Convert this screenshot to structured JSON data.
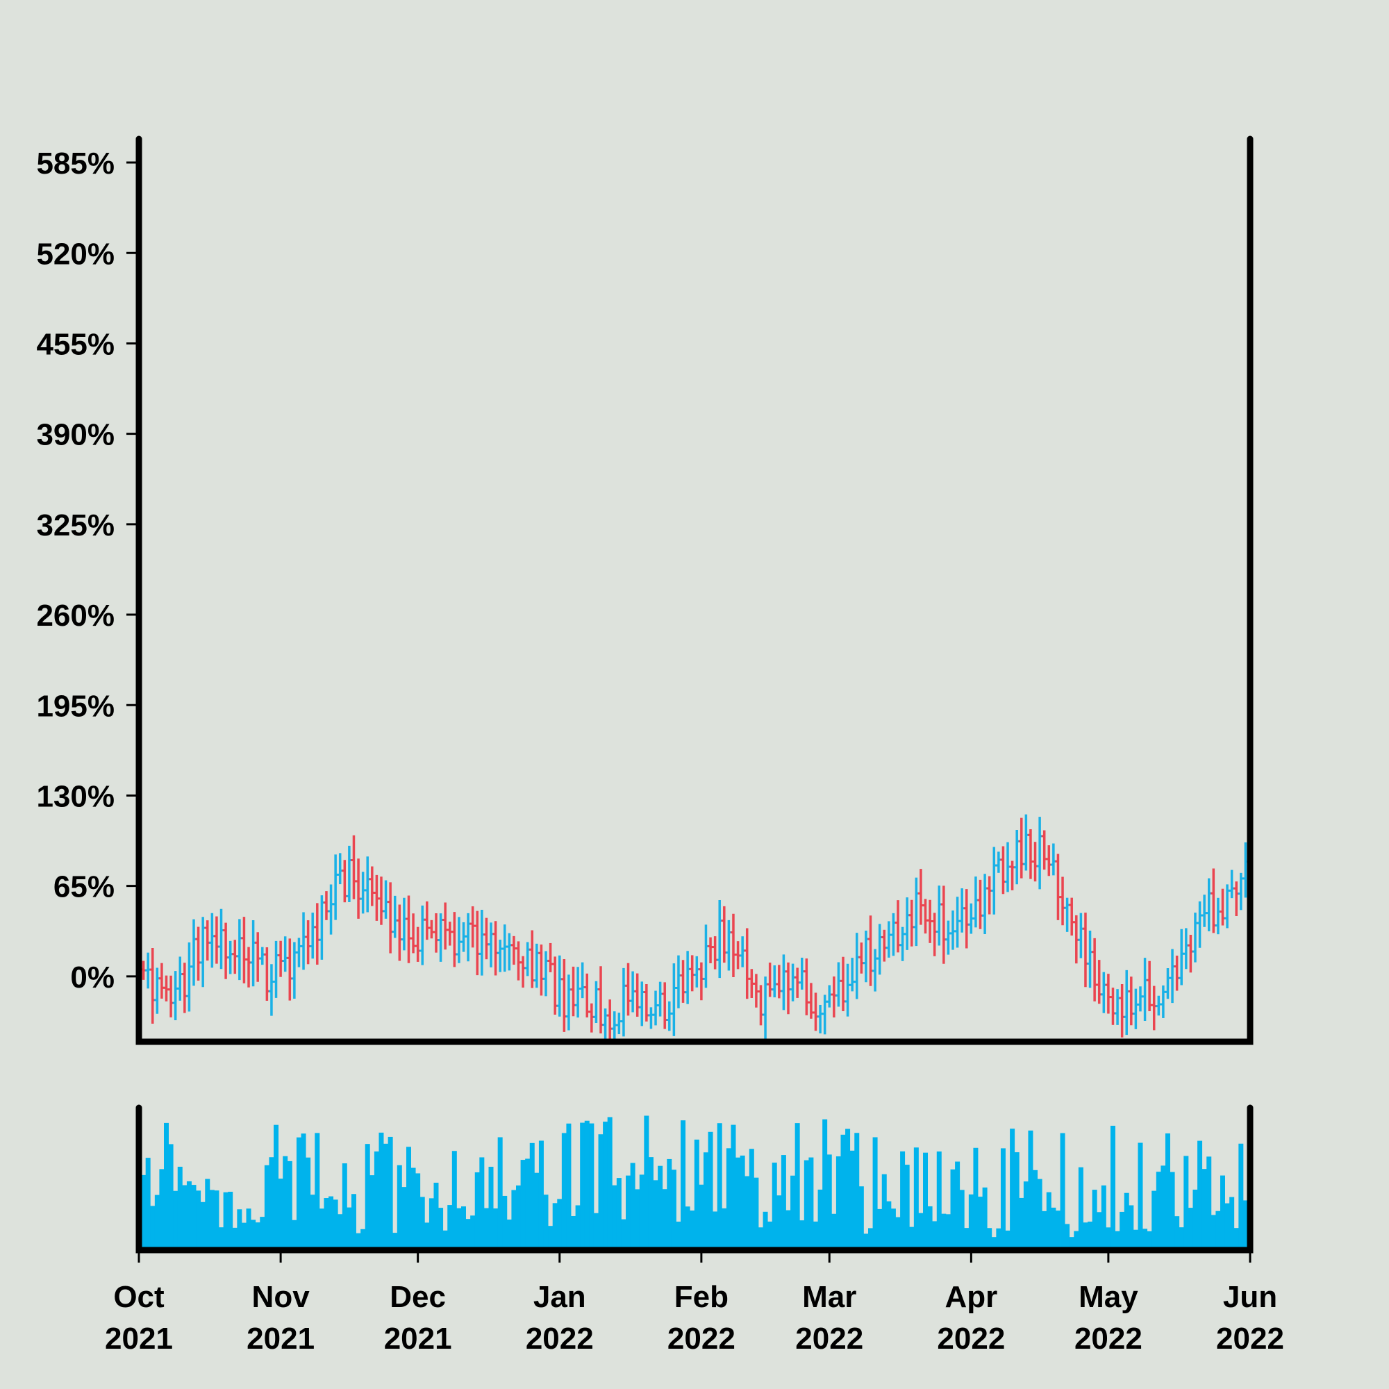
{
  "chart_data": {
    "type": "ohlc",
    "title": "",
    "xlabel": "",
    "ylabel": "",
    "y_format": "percent",
    "y_ticks": [
      0,
      65,
      130,
      195,
      260,
      325,
      390,
      455,
      520,
      585
    ],
    "y_tick_labels": [
      "0%",
      "65%",
      "130%",
      "195%",
      "260%",
      "325%",
      "390%",
      "455%",
      "520%",
      "585%"
    ],
    "ylim": [
      -47,
      602
    ],
    "x_range": [
      "2021-10-01",
      "2022-06-01"
    ],
    "x_ticks": [
      {
        "date": "2021-10-01",
        "month": "Oct",
        "year": "2021"
      },
      {
        "date": "2021-11-01",
        "month": "Nov",
        "year": "2021"
      },
      {
        "date": "2021-12-01",
        "month": "Dec",
        "year": "2021"
      },
      {
        "date": "2022-01-01",
        "month": "Jan",
        "year": "2022"
      },
      {
        "date": "2022-02-01",
        "month": "Feb",
        "year": "2022"
      },
      {
        "date": "2022-03-01",
        "month": "Mar",
        "year": "2022"
      },
      {
        "date": "2022-04-01",
        "month": "Apr",
        "year": "2022"
      },
      {
        "date": "2022-05-01",
        "month": "May",
        "year": "2022"
      },
      {
        "date": "2022-06-01",
        "month": "Jun",
        "year": "2022"
      }
    ],
    "up_color": "#1ab1e6",
    "down_color": "#ea4550",
    "volume_color": "#00b3ec",
    "grid": false,
    "series": [
      {
        "dates": [
          "2021-10-02",
          "2021-10-08",
          "2021-10-15",
          "2021-10-22",
          "2021-10-29",
          "2021-11-05",
          "2021-11-12",
          "2021-11-16",
          "2021-11-22",
          "2021-11-29",
          "2021-12-06",
          "2021-12-13",
          "2021-12-20",
          "2021-12-27",
          "2022-01-03",
          "2022-01-10",
          "2022-01-17",
          "2022-01-24",
          "2022-01-31",
          "2022-02-07",
          "2022-02-14",
          "2022-02-21",
          "2022-02-28",
          "2022-03-07",
          "2022-03-14",
          "2022-03-21",
          "2022-03-28",
          "2022-04-04",
          "2022-04-11",
          "2022-04-17",
          "2022-04-25",
          "2022-05-02",
          "2022-05-09",
          "2022-05-16",
          "2022-05-23",
          "2022-05-30"
        ],
        "close": [
          5,
          -18,
          25,
          25,
          0,
          10,
          60,
          70,
          50,
          30,
          35,
          22,
          30,
          8,
          -20,
          -25,
          -20,
          -22,
          5,
          35,
          -15,
          0,
          -28,
          10,
          25,
          50,
          28,
          60,
          95,
          90,
          30,
          -33,
          -15,
          -5,
          45,
          70
        ],
        "volume": [
          0.5,
          0.7,
          0.55,
          0.45,
          0.6,
          0.55,
          0.5,
          0.45,
          0.5,
          0.4,
          0.45,
          0.5,
          0.45,
          0.45,
          0.55,
          0.6,
          0.55,
          0.6,
          0.5,
          0.55,
          0.5,
          0.55,
          0.55,
          0.5,
          0.45,
          0.5,
          0.4,
          0.45,
          0.5,
          0.45,
          0.45,
          0.5,
          0.5,
          0.5,
          0.45,
          0.5
        ]
      }
    ]
  }
}
